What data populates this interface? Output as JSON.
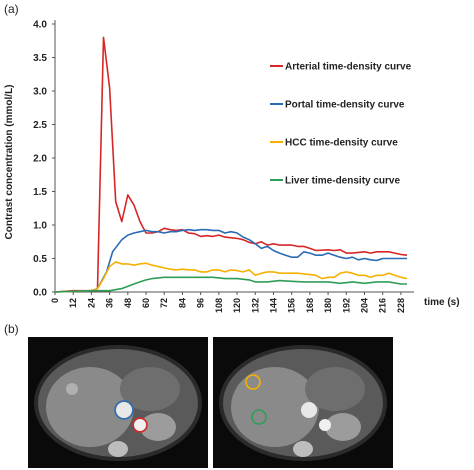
{
  "panel_a_label": "(a)",
  "panel_b_label": "(b)",
  "colors": {
    "arterial": "#d62728",
    "portal": "#2a6bb5",
    "hcc": "#f5b000",
    "liver": "#2e9e57"
  },
  "chart_data": {
    "type": "line",
    "xlabel": "time (s)",
    "ylabel": "Contrast concentration (mmol/L)",
    "xlim": [
      0,
      234
    ],
    "ylim": [
      0,
      4.0
    ],
    "xticks": [
      0,
      12,
      24,
      36,
      48,
      60,
      72,
      84,
      96,
      108,
      120,
      132,
      144,
      156,
      168,
      180,
      192,
      204,
      216,
      228
    ],
    "yticks": [
      0.0,
      0.5,
      1.0,
      1.5,
      2.0,
      2.5,
      3.0,
      3.5,
      4.0
    ],
    "ytick_labels": [
      "0.0",
      "0.5",
      "1.0",
      "1.5",
      "2.0",
      "2.5",
      "3.0",
      "3.5",
      "4.0"
    ],
    "legend_position": "right",
    "grid": false,
    "series": [
      {
        "name": "Arterial time-density curve",
        "color_key": "arterial",
        "points": [
          [
            0,
            0
          ],
          [
            12,
            0.02
          ],
          [
            24,
            0.02
          ],
          [
            28,
            0.05
          ],
          [
            32,
            3.8
          ],
          [
            36,
            3.05
          ],
          [
            40,
            1.35
          ],
          [
            44,
            1.05
          ],
          [
            48,
            1.45
          ],
          [
            52,
            1.3
          ],
          [
            56,
            1.05
          ],
          [
            60,
            0.88
          ],
          [
            64,
            0.88
          ],
          [
            68,
            0.9
          ],
          [
            72,
            0.95
          ],
          [
            76,
            0.93
          ],
          [
            80,
            0.92
          ],
          [
            84,
            0.93
          ],
          [
            88,
            0.88
          ],
          [
            92,
            0.87
          ],
          [
            96,
            0.83
          ],
          [
            100,
            0.84
          ],
          [
            104,
            0.83
          ],
          [
            108,
            0.85
          ],
          [
            112,
            0.82
          ],
          [
            120,
            0.8
          ],
          [
            124,
            0.78
          ],
          [
            128,
            0.74
          ],
          [
            132,
            0.72
          ],
          [
            136,
            0.75
          ],
          [
            140,
            0.7
          ],
          [
            144,
            0.72
          ],
          [
            148,
            0.7
          ],
          [
            152,
            0.7
          ],
          [
            156,
            0.7
          ],
          [
            160,
            0.68
          ],
          [
            164,
            0.68
          ],
          [
            168,
            0.65
          ],
          [
            172,
            0.62
          ],
          [
            180,
            0.63
          ],
          [
            184,
            0.62
          ],
          [
            188,
            0.63
          ],
          [
            192,
            0.58
          ],
          [
            196,
            0.58
          ],
          [
            204,
            0.6
          ],
          [
            208,
            0.58
          ],
          [
            212,
            0.6
          ],
          [
            216,
            0.6
          ],
          [
            220,
            0.6
          ],
          [
            224,
            0.58
          ],
          [
            228,
            0.56
          ],
          [
            232,
            0.55
          ]
        ]
      },
      {
        "name": "Portal time-density curve",
        "color_key": "portal",
        "points": [
          [
            0,
            0
          ],
          [
            24,
            0.02
          ],
          [
            28,
            0.05
          ],
          [
            34,
            0.3
          ],
          [
            38,
            0.6
          ],
          [
            44,
            0.78
          ],
          [
            48,
            0.85
          ],
          [
            52,
            0.88
          ],
          [
            56,
            0.9
          ],
          [
            60,
            0.92
          ],
          [
            64,
            0.9
          ],
          [
            68,
            0.9
          ],
          [
            72,
            0.88
          ],
          [
            76,
            0.9
          ],
          [
            80,
            0.9
          ],
          [
            84,
            0.92
          ],
          [
            88,
            0.93
          ],
          [
            92,
            0.92
          ],
          [
            96,
            0.93
          ],
          [
            100,
            0.93
          ],
          [
            104,
            0.92
          ],
          [
            108,
            0.92
          ],
          [
            112,
            0.88
          ],
          [
            116,
            0.9
          ],
          [
            120,
            0.88
          ],
          [
            124,
            0.82
          ],
          [
            128,
            0.78
          ],
          [
            132,
            0.72
          ],
          [
            136,
            0.65
          ],
          [
            140,
            0.68
          ],
          [
            144,
            0.62
          ],
          [
            148,
            0.58
          ],
          [
            152,
            0.55
          ],
          [
            156,
            0.52
          ],
          [
            160,
            0.52
          ],
          [
            164,
            0.6
          ],
          [
            168,
            0.58
          ],
          [
            172,
            0.55
          ],
          [
            176,
            0.55
          ],
          [
            180,
            0.58
          ],
          [
            184,
            0.55
          ],
          [
            188,
            0.52
          ],
          [
            192,
            0.5
          ],
          [
            196,
            0.52
          ],
          [
            200,
            0.48
          ],
          [
            204,
            0.5
          ],
          [
            208,
            0.48
          ],
          [
            212,
            0.47
          ],
          [
            216,
            0.5
          ],
          [
            220,
            0.5
          ],
          [
            224,
            0.5
          ],
          [
            228,
            0.5
          ],
          [
            232,
            0.5
          ]
        ]
      },
      {
        "name": "HCC time-density curve",
        "color_key": "hcc",
        "points": [
          [
            0,
            0
          ],
          [
            24,
            0.02
          ],
          [
            28,
            0.05
          ],
          [
            32,
            0.2
          ],
          [
            36,
            0.38
          ],
          [
            40,
            0.45
          ],
          [
            44,
            0.42
          ],
          [
            48,
            0.42
          ],
          [
            52,
            0.4
          ],
          [
            56,
            0.42
          ],
          [
            60,
            0.43
          ],
          [
            64,
            0.4
          ],
          [
            68,
            0.38
          ],
          [
            72,
            0.36
          ],
          [
            76,
            0.34
          ],
          [
            80,
            0.33
          ],
          [
            84,
            0.34
          ],
          [
            88,
            0.33
          ],
          [
            92,
            0.33
          ],
          [
            96,
            0.3
          ],
          [
            100,
            0.3
          ],
          [
            104,
            0.33
          ],
          [
            108,
            0.33
          ],
          [
            112,
            0.3
          ],
          [
            116,
            0.33
          ],
          [
            120,
            0.32
          ],
          [
            124,
            0.3
          ],
          [
            128,
            0.33
          ],
          [
            132,
            0.25
          ],
          [
            136,
            0.28
          ],
          [
            140,
            0.3
          ],
          [
            144,
            0.3
          ],
          [
            148,
            0.28
          ],
          [
            152,
            0.28
          ],
          [
            156,
            0.28
          ],
          [
            160,
            0.28
          ],
          [
            164,
            0.27
          ],
          [
            168,
            0.26
          ],
          [
            172,
            0.25
          ],
          [
            176,
            0.2
          ],
          [
            180,
            0.22
          ],
          [
            184,
            0.22
          ],
          [
            188,
            0.28
          ],
          [
            192,
            0.3
          ],
          [
            196,
            0.28
          ],
          [
            200,
            0.25
          ],
          [
            204,
            0.25
          ],
          [
            208,
            0.22
          ],
          [
            212,
            0.25
          ],
          [
            216,
            0.25
          ],
          [
            220,
            0.28
          ],
          [
            224,
            0.25
          ],
          [
            228,
            0.22
          ],
          [
            232,
            0.2
          ]
        ]
      },
      {
        "name": "Liver time-density curve",
        "color_key": "liver",
        "points": [
          [
            0,
            0
          ],
          [
            24,
            0.02
          ],
          [
            36,
            0.02
          ],
          [
            44,
            0.05
          ],
          [
            52,
            0.12
          ],
          [
            56,
            0.15
          ],
          [
            60,
            0.18
          ],
          [
            64,
            0.2
          ],
          [
            72,
            0.22
          ],
          [
            80,
            0.22
          ],
          [
            88,
            0.22
          ],
          [
            96,
            0.22
          ],
          [
            104,
            0.22
          ],
          [
            112,
            0.2
          ],
          [
            120,
            0.2
          ],
          [
            128,
            0.18
          ],
          [
            132,
            0.15
          ],
          [
            140,
            0.15
          ],
          [
            148,
            0.17
          ],
          [
            156,
            0.16
          ],
          [
            164,
            0.15
          ],
          [
            172,
            0.15
          ],
          [
            180,
            0.15
          ],
          [
            188,
            0.13
          ],
          [
            196,
            0.15
          ],
          [
            204,
            0.13
          ],
          [
            212,
            0.15
          ],
          [
            220,
            0.15
          ],
          [
            228,
            0.12
          ],
          [
            232,
            0.12
          ]
        ]
      }
    ]
  }
}
